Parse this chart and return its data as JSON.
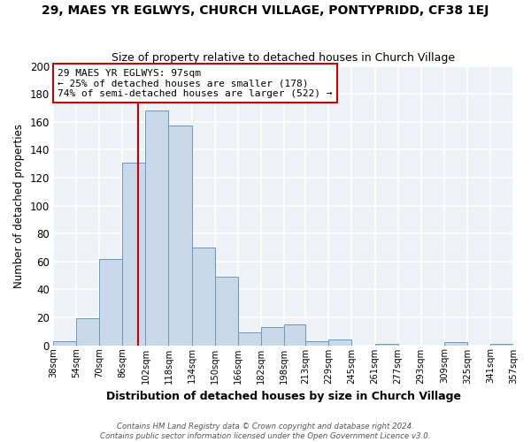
{
  "title": "29, MAES YR EGLWYS, CHURCH VILLAGE, PONTYPRIDD, CF38 1EJ",
  "subtitle": "Size of property relative to detached houses in Church Village",
  "xlabel": "Distribution of detached houses by size in Church Village",
  "ylabel": "Number of detached properties",
  "bar_color": "#c9d9ea",
  "bar_edge_color": "#6699bb",
  "background_color": "#eef2f7",
  "grid_color": "#ffffff",
  "bin_edges": [
    38,
    54,
    70,
    86,
    102,
    118,
    134,
    150,
    166,
    182,
    198,
    213,
    229,
    245,
    261,
    277,
    293,
    309,
    325,
    341,
    357
  ],
  "bin_labels": [
    "38sqm",
    "54sqm",
    "70sqm",
    "86sqm",
    "102sqm",
    "118sqm",
    "134sqm",
    "150sqm",
    "166sqm",
    "182sqm",
    "198sqm",
    "213sqm",
    "229sqm",
    "245sqm",
    "261sqm",
    "277sqm",
    "293sqm",
    "309sqm",
    "325sqm",
    "341sqm",
    "357sqm"
  ],
  "counts": [
    3,
    19,
    62,
    131,
    168,
    157,
    70,
    49,
    9,
    13,
    15,
    3,
    4,
    0,
    1,
    0,
    0,
    2,
    0,
    1
  ],
  "ylim": [
    0,
    200
  ],
  "yticks": [
    0,
    20,
    40,
    60,
    80,
    100,
    120,
    140,
    160,
    180,
    200
  ],
  "property_line_x": 97,
  "annotation_title": "29 MAES YR EGLWYS: 97sqm",
  "annotation_line1": "← 25% of detached houses are smaller (178)",
  "annotation_line2": "74% of semi-detached houses are larger (522) →",
  "annotation_box_color": "#ffffff",
  "annotation_border_color": "#cc0000",
  "footer1": "Contains HM Land Registry data © Crown copyright and database right 2024.",
  "footer2": "Contains public sector information licensed under the Open Government Licence v3.0."
}
